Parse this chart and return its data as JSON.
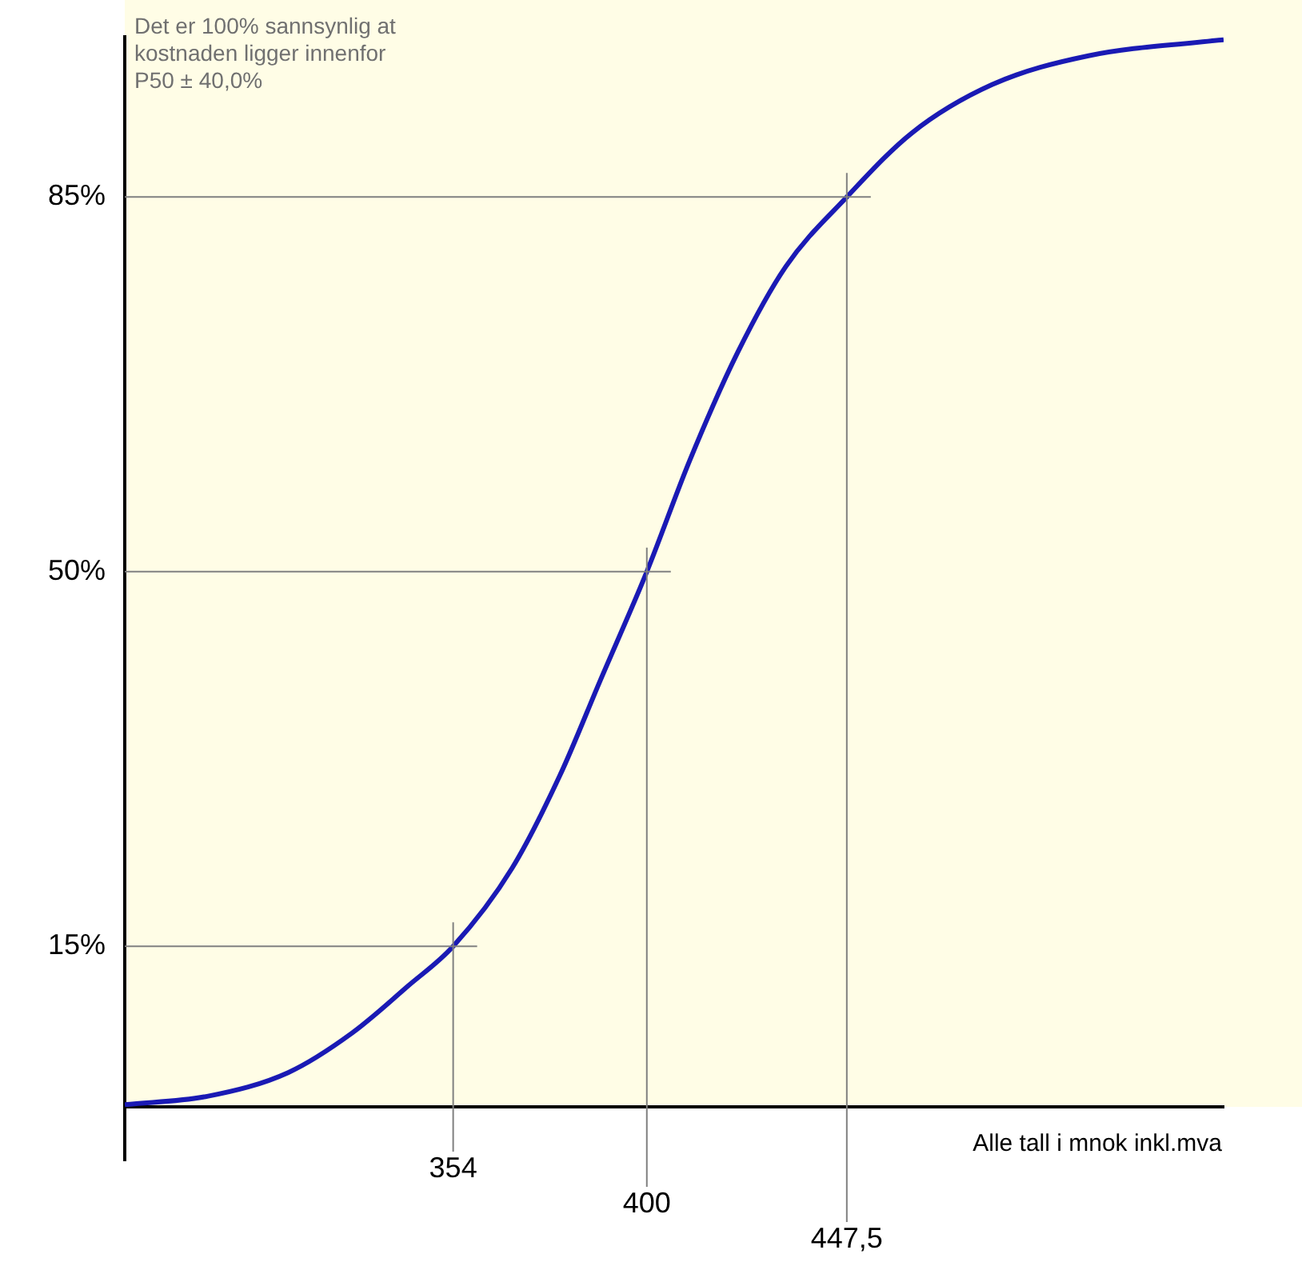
{
  "chart_data": {
    "type": "line",
    "annotations": [
      "Det er 100% sannsynlig at\nkostnaden ligger innenfor\nP50 ± 40,0%",
      "Alle tall i mnok inkl.mva"
    ],
    "series": [
      {
        "color": "#1a1ab4",
        "x": [
          276,
          295.8,
          314.8,
          330,
          343.3,
          354,
          368,
          379.4,
          388.9,
          400,
          410.2,
          421.6,
          433,
          447.5,
          463,
          482,
          504.9,
          537
        ],
        "values": [
          0.2,
          1,
          3.2,
          6.9,
          11.3,
          15,
          22.3,
          31,
          39.8,
          50,
          60.4,
          70.5,
          78.5,
          85,
          91,
          95.5,
          98.2,
          99.7
        ]
      }
    ],
    "xlim": [
      276,
      537
    ],
    "ylim": [
      0,
      100
    ],
    "tick_labels": "y",
    "yticks": [
      {
        "value": 15,
        "label": "15%"
      },
      {
        "value": 50,
        "label": "50%"
      },
      {
        "value": 85,
        "label": "85%"
      }
    ],
    "ref_lines": [
      {
        "axis": "y",
        "value": 15,
        "color": "#808080"
      },
      {
        "axis": "y",
        "value": 50,
        "color": "#808080"
      },
      {
        "axis": "y",
        "value": 85,
        "color": "#808080"
      },
      {
        "axis": "x",
        "value": 354,
        "label": "354",
        "color": "#808080"
      },
      {
        "axis": "x",
        "value": 400,
        "label": "400",
        "color": "#808080"
      },
      {
        "axis": "x",
        "value": 447.5,
        "label": "447,5",
        "color": "#808080"
      }
    ],
    "grid": false,
    "legend": false
  }
}
